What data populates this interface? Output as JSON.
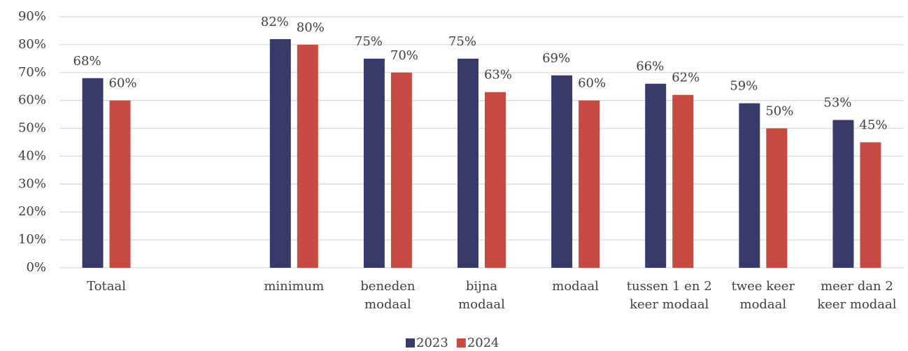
{
  "chart_data": {
    "type": "bar",
    "categories": [
      "Totaal",
      null,
      "minimum",
      "beneden modaal",
      "bijna modaal",
      "modaal",
      "tussen 1 en 2 keer modaal",
      "twee keer modaal",
      "meer dan 2 keer modaal"
    ],
    "series": [
      {
        "name": "2023",
        "color": "#363b69",
        "values": [
          68,
          null,
          82,
          75,
          75,
          69,
          66,
          59,
          53
        ],
        "value_labels": [
          "68%",
          null,
          "82%",
          "75%",
          "75%",
          "69%",
          "66%",
          "59%",
          "53%"
        ]
      },
      {
        "name": "2024",
        "color": "#c84b43",
        "values": [
          60,
          null,
          80,
          70,
          63,
          60,
          62,
          50,
          45
        ],
        "value_labels": [
          "60%",
          null,
          "80%",
          "70%",
          "63%",
          "60%",
          "62%",
          "50%",
          "45%"
        ]
      }
    ],
    "ylim": [
      0,
      90
    ],
    "yticks": [
      {
        "value": 0,
        "label": "0%"
      },
      {
        "value": 10,
        "label": "10%"
      },
      {
        "value": 20,
        "label": "20%"
      },
      {
        "value": 30,
        "label": "30%"
      },
      {
        "value": 40,
        "label": "40%"
      },
      {
        "value": 50,
        "label": "50%"
      },
      {
        "value": 60,
        "label": "60%"
      },
      {
        "value": 70,
        "label": "70%"
      },
      {
        "value": 80,
        "label": "80%"
      },
      {
        "value": 90,
        "label": "90%"
      }
    ],
    "grid": true,
    "legend": "bottom"
  }
}
